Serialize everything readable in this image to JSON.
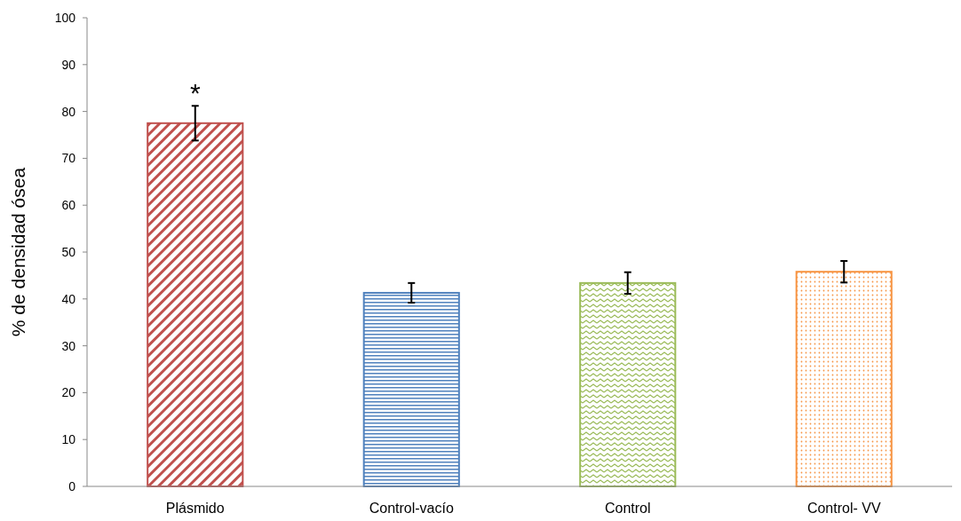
{
  "chart_data": {
    "type": "bar",
    "ylabel": "% de densidad ósea",
    "categories": [
      "Plásmido",
      "Control-vacío",
      "Control",
      "Control- VV"
    ],
    "values": [
      77.5,
      41.3,
      43.4,
      45.8
    ],
    "errors": [
      3.7,
      2.1,
      2.3,
      2.3
    ],
    "colors": [
      "#c0504d",
      "#4f81bd",
      "#9bbb59",
      "#f79646"
    ],
    "ylim": [
      0,
      100
    ],
    "yticks": [
      0,
      10,
      20,
      30,
      40,
      50,
      60,
      70,
      80,
      90,
      100
    ],
    "grid": false,
    "annotations": [
      {
        "text": "*",
        "x": "Plásmido",
        "y": 82
      }
    ]
  }
}
